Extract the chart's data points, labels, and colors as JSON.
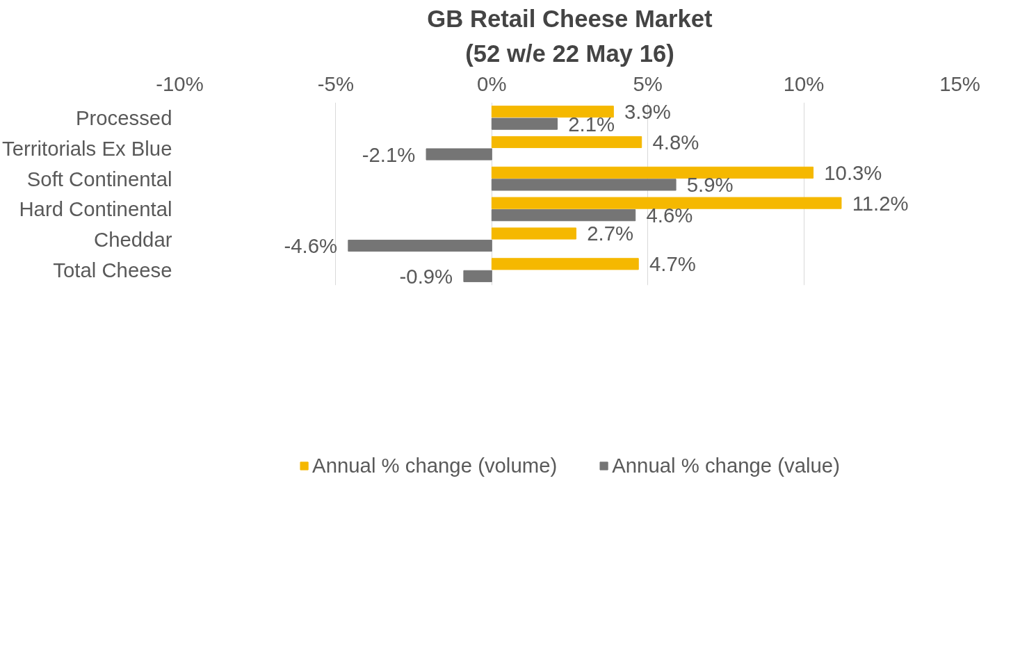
{
  "chart_data": {
    "type": "bar",
    "orientation": "horizontal",
    "title": "GB Retail Cheese Market",
    "subtitle": "(52 w/e 22 May 16)",
    "categories": [
      "Processed",
      "Territorials Ex Blue",
      "Soft Continental",
      "Hard Continental",
      "Cheddar",
      "Total Cheese"
    ],
    "series": [
      {
        "name": "Annual % change (volume)",
        "color": "#f5b800",
        "values": [
          3.9,
          4.8,
          10.3,
          11.2,
          2.7,
          4.7
        ],
        "value_labels": [
          "3.9%",
          "4.8%",
          "10.3%",
          "11.2%",
          "2.7%",
          "4.7%"
        ]
      },
      {
        "name": "Annual % change (value)",
        "color": "#757575",
        "values": [
          2.1,
          -2.1,
          5.9,
          4.6,
          -4.6,
          -0.9
        ],
        "value_labels": [
          "2.1%",
          "-2.1%",
          "5.9%",
          "4.6%",
          "-4.6%",
          "-0.9%"
        ]
      }
    ],
    "xlim": [
      -10,
      15
    ],
    "xticks": [
      {
        "value": -10,
        "label": "-10%"
      },
      {
        "value": -5,
        "label": "-5%"
      },
      {
        "value": 0,
        "label": "0%"
      },
      {
        "value": 5,
        "label": "5%"
      },
      {
        "value": 10,
        "label": "10%"
      },
      {
        "value": 15,
        "label": "15%"
      }
    ],
    "grid": "x",
    "legend": "bottom"
  }
}
